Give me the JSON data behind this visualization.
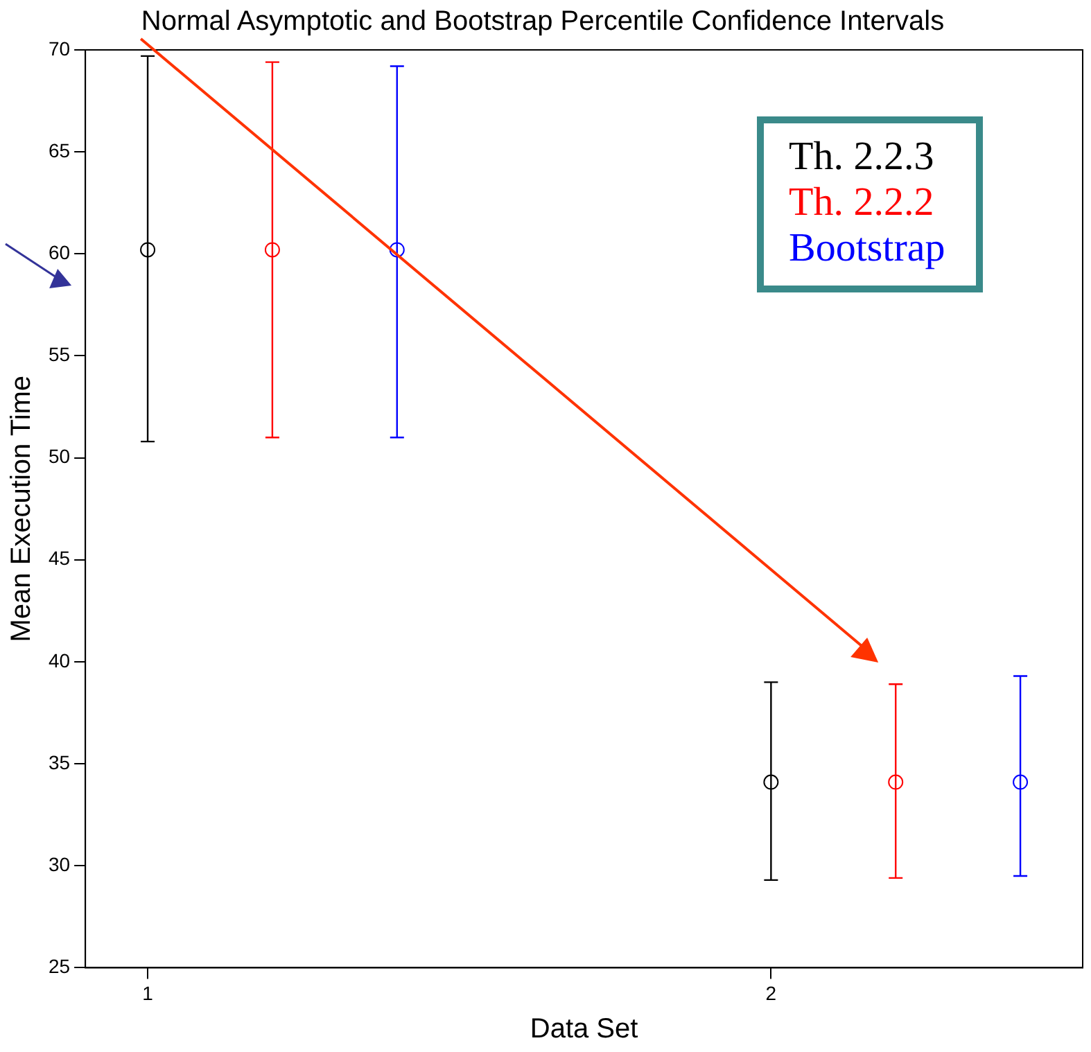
{
  "chart_data": {
    "type": "scatter",
    "title": "Normal Asymptotic and Bootstrap Percentile Confidence Intervals",
    "xlabel": "Data Set",
    "ylabel": "Mean Execution Time",
    "xlim": [
      0.9,
      2.5
    ],
    "xticks": [
      1,
      2
    ],
    "ylim": [
      25,
      70
    ],
    "yticks": [
      25,
      30,
      35,
      40,
      45,
      50,
      55,
      60,
      65,
      70
    ],
    "grid": false,
    "legend": "top right",
    "marker": "circle",
    "series": [
      {
        "name": "Th. 2.2.3",
        "color": "#000000",
        "x": [
          1,
          2
        ],
        "values": [
          60.2,
          34.1
        ],
        "errors": [
          [
            50.8,
            69.7
          ],
          [
            29.3,
            39.0
          ]
        ]
      },
      {
        "name": "Th. 2.2.2",
        "color": "#ff0000",
        "x": [
          1.2,
          2.2
        ],
        "values": [
          60.2,
          34.1
        ],
        "errors": [
          [
            51.0,
            69.4
          ],
          [
            29.4,
            38.9
          ]
        ]
      },
      {
        "name": "Bootstrap",
        "color": "#0000ff",
        "x": [
          1.4,
          2.4
        ],
        "values": [
          60.2,
          34.1
        ],
        "errors": [
          [
            51.0,
            69.2
          ],
          [
            29.5,
            39.3
          ]
        ]
      }
    ]
  }
}
